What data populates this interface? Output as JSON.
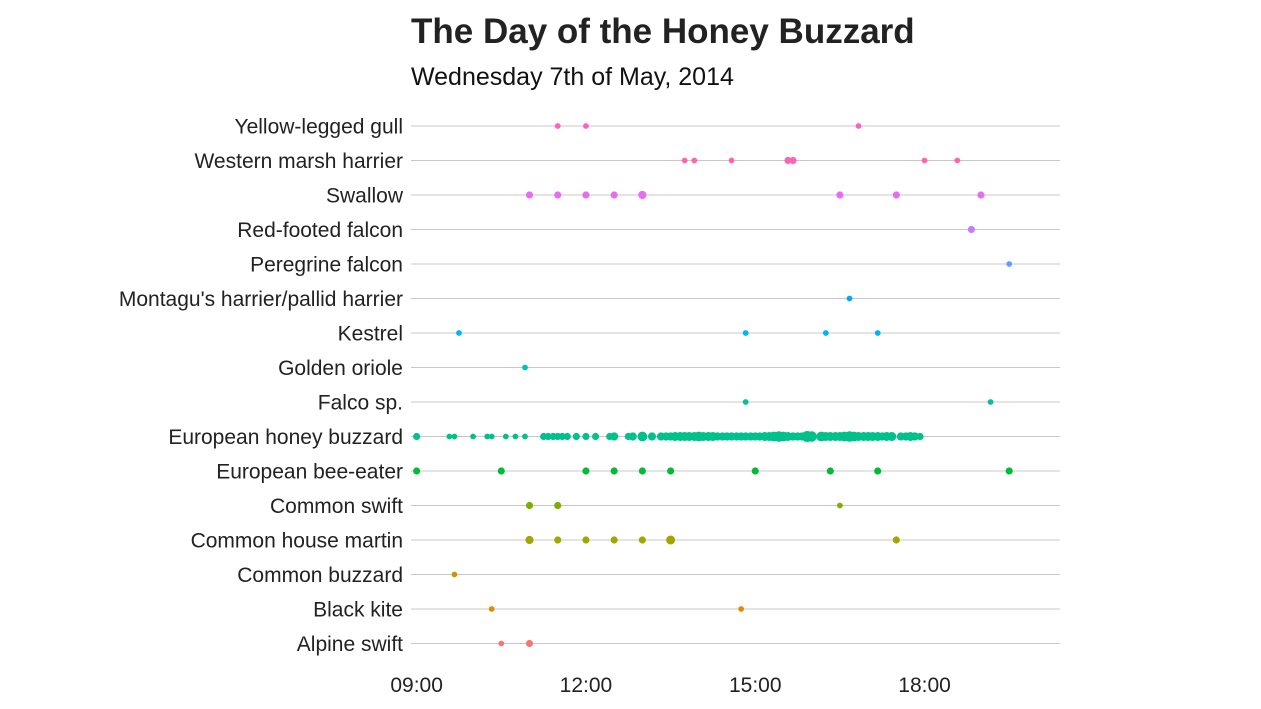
{
  "chart_data": {
    "type": "scatter",
    "title": "The Day of the Honey Buzzard",
    "subtitle": "Wednesday 7th of May, 2014",
    "xlabel": "",
    "ylabel": "",
    "x_unit": "time of day (hours)",
    "xlim": [
      8.9,
      20.4
    ],
    "x_ticks": [
      {
        "value": 9,
        "label": "09:00"
      },
      {
        "value": 12,
        "label": "12:00"
      },
      {
        "value": 15,
        "label": "15:00"
      },
      {
        "value": 18,
        "label": "18:00"
      }
    ],
    "categories": [
      "Yellow-legged gull",
      "Western marsh harrier",
      "Swallow",
      "Red-footed falcon",
      "Peregrine falcon",
      "Montagu's harrier/pallid harrier",
      "Kestrel",
      "Golden oriole",
      "Falco sp.",
      "European honey buzzard",
      "European bee-eater",
      "Common swift",
      "Common house martin",
      "Common buzzard",
      "Black kite",
      "Alpine swift"
    ],
    "grid": true,
    "legend": "none",
    "series": [
      {
        "category": "Yellow-legged gull",
        "color": "#ff61c3",
        "points": [
          [
            11.5,
            1
          ],
          [
            12.0,
            1
          ],
          [
            16.83,
            1
          ]
        ]
      },
      {
        "category": "Western marsh harrier",
        "color": "#ff64b0",
        "points": [
          [
            13.75,
            1
          ],
          [
            13.92,
            1
          ],
          [
            14.58,
            1
          ],
          [
            15.58,
            2
          ],
          [
            15.67,
            2
          ],
          [
            18.0,
            1
          ],
          [
            18.58,
            1
          ]
        ]
      },
      {
        "category": "Swallow",
        "color": "#e76bf3",
        "points": [
          [
            11.0,
            2
          ],
          [
            11.5,
            2
          ],
          [
            12.0,
            2
          ],
          [
            12.5,
            2
          ],
          [
            13.0,
            3
          ],
          [
            16.5,
            2
          ],
          [
            17.5,
            2
          ],
          [
            19.0,
            2
          ]
        ]
      },
      {
        "category": "Red-footed falcon",
        "color": "#c77cff",
        "points": [
          [
            18.83,
            2
          ]
        ]
      },
      {
        "category": "Peregrine falcon",
        "color": "#619cff",
        "points": [
          [
            19.5,
            1
          ]
        ]
      },
      {
        "category": "Montagu's harrier/pallid harrier",
        "color": "#00a9ff",
        "points": [
          [
            16.67,
            1
          ]
        ]
      },
      {
        "category": "Kestrel",
        "color": "#00b4f0",
        "points": [
          [
            9.75,
            1
          ],
          [
            14.83,
            1
          ],
          [
            16.25,
            1
          ],
          [
            17.17,
            1
          ]
        ]
      },
      {
        "category": "Golden oriole",
        "color": "#00bfc4",
        "points": [
          [
            10.92,
            1
          ]
        ]
      },
      {
        "category": "Falco sp.",
        "color": "#00c19a",
        "points": [
          [
            14.83,
            1
          ],
          [
            19.17,
            1
          ]
        ]
      },
      {
        "category": "European honey buzzard",
        "color": "#00c08b",
        "points": [
          [
            9.0,
            2
          ],
          [
            9.58,
            1
          ],
          [
            9.67,
            1
          ],
          [
            10.0,
            1
          ],
          [
            10.25,
            1
          ],
          [
            10.33,
            1
          ],
          [
            10.58,
            1
          ],
          [
            10.75,
            1
          ],
          [
            10.92,
            1
          ],
          [
            11.25,
            2
          ],
          [
            11.33,
            2
          ],
          [
            11.42,
            2
          ],
          [
            11.5,
            2
          ],
          [
            11.58,
            2
          ],
          [
            11.67,
            2
          ],
          [
            11.83,
            2
          ],
          [
            12.0,
            2
          ],
          [
            12.17,
            2
          ],
          [
            12.42,
            2
          ],
          [
            12.5,
            3
          ],
          [
            12.75,
            2
          ],
          [
            12.83,
            3
          ],
          [
            13.0,
            5
          ],
          [
            13.17,
            3
          ],
          [
            13.33,
            3
          ],
          [
            13.42,
            3
          ],
          [
            13.5,
            3
          ],
          [
            13.58,
            4
          ],
          [
            13.67,
            4
          ],
          [
            13.75,
            4
          ],
          [
            13.83,
            4
          ],
          [
            13.92,
            4
          ],
          [
            14.0,
            5
          ],
          [
            14.08,
            4
          ],
          [
            14.17,
            4
          ],
          [
            14.25,
            4
          ],
          [
            14.33,
            3
          ],
          [
            14.42,
            3
          ],
          [
            14.5,
            3
          ],
          [
            14.58,
            3
          ],
          [
            14.67,
            3
          ],
          [
            14.75,
            3
          ],
          [
            14.83,
            3
          ],
          [
            14.92,
            3
          ],
          [
            15.0,
            3
          ],
          [
            15.08,
            3
          ],
          [
            15.17,
            4
          ],
          [
            15.25,
            4
          ],
          [
            15.33,
            5
          ],
          [
            15.42,
            6
          ],
          [
            15.5,
            5
          ],
          [
            15.58,
            4
          ],
          [
            15.67,
            3
          ],
          [
            15.75,
            3
          ],
          [
            15.83,
            3
          ],
          [
            15.92,
            7
          ],
          [
            16.0,
            6
          ],
          [
            16.17,
            5
          ],
          [
            16.25,
            4
          ],
          [
            16.33,
            4
          ],
          [
            16.42,
            4
          ],
          [
            16.5,
            4
          ],
          [
            16.58,
            5
          ],
          [
            16.67,
            6
          ],
          [
            16.75,
            5
          ],
          [
            16.83,
            4
          ],
          [
            16.92,
            4
          ],
          [
            17.0,
            4
          ],
          [
            17.08,
            4
          ],
          [
            17.17,
            4
          ],
          [
            17.25,
            3
          ],
          [
            17.33,
            4
          ],
          [
            17.42,
            4
          ],
          [
            17.58,
            3
          ],
          [
            17.67,
            3
          ],
          [
            17.75,
            4
          ],
          [
            17.83,
            3
          ],
          [
            17.92,
            2
          ]
        ]
      },
      {
        "category": "European bee-eater",
        "color": "#00ba38",
        "points": [
          [
            9.0,
            2
          ],
          [
            10.5,
            2
          ],
          [
            12.0,
            2
          ],
          [
            12.5,
            2
          ],
          [
            13.0,
            2
          ],
          [
            13.5,
            2
          ],
          [
            15.0,
            2
          ],
          [
            16.33,
            2
          ],
          [
            17.17,
            2
          ],
          [
            19.5,
            2
          ]
        ]
      },
      {
        "category": "Common swift",
        "color": "#7cae00",
        "points": [
          [
            11.0,
            2
          ],
          [
            11.5,
            2
          ],
          [
            16.5,
            1
          ]
        ]
      },
      {
        "category": "Common house martin",
        "color": "#a3a500",
        "points": [
          [
            11.0,
            3
          ],
          [
            11.5,
            2
          ],
          [
            12.0,
            2
          ],
          [
            12.5,
            2
          ],
          [
            13.0,
            2
          ],
          [
            13.5,
            4
          ],
          [
            17.5,
            2
          ]
        ]
      },
      {
        "category": "Common buzzard",
        "color": "#c49a00",
        "points": [
          [
            9.67,
            1
          ]
        ]
      },
      {
        "category": "Black kite",
        "color": "#de8c00",
        "points": [
          [
            10.33,
            1
          ],
          [
            14.75,
            1
          ]
        ]
      },
      {
        "category": "Alpine swift",
        "color": "#f8766d",
        "points": [
          [
            10.5,
            1
          ],
          [
            11.0,
            2
          ]
        ]
      }
    ]
  }
}
